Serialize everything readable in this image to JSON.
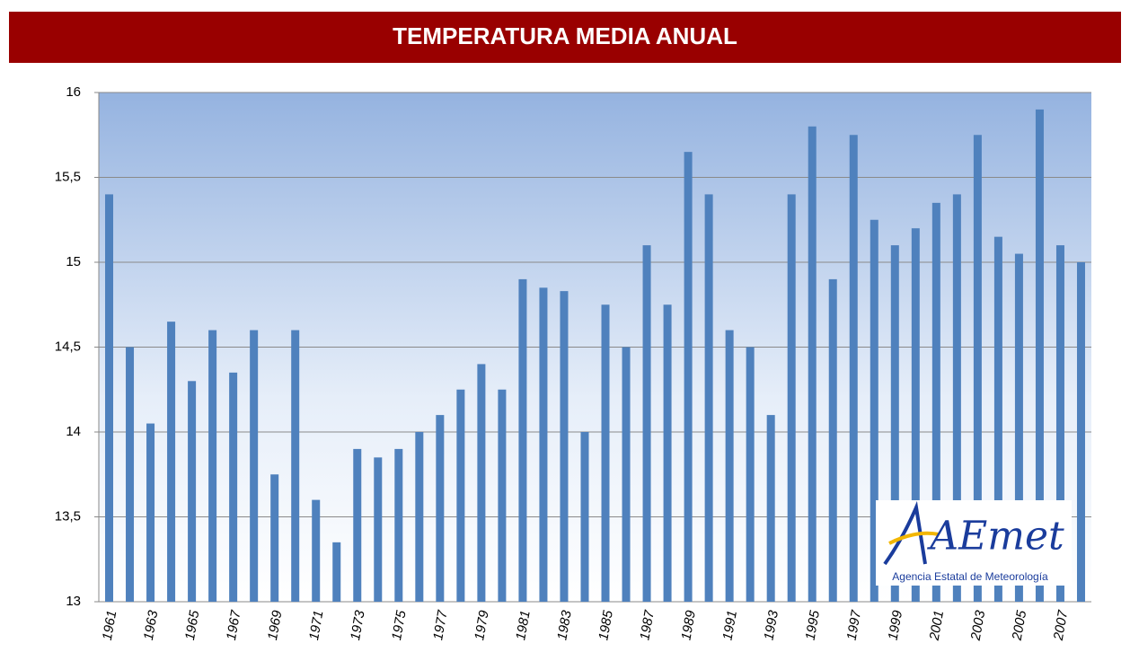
{
  "chart_data": {
    "type": "bar",
    "title": "TEMPERATURA MEDIA ANUAL",
    "categories": [
      "1961",
      null,
      "1963",
      null,
      "1965",
      null,
      "1967",
      null,
      "1969",
      null,
      "1971",
      null,
      "1973",
      null,
      "1975",
      null,
      "1977",
      null,
      "1979",
      null,
      "1981",
      null,
      "1983",
      null,
      "1985",
      null,
      "1987",
      null,
      "1989",
      null,
      "1991",
      null,
      "1993",
      null,
      "1995",
      null,
      "1997",
      null,
      "1999",
      null,
      "2001",
      null,
      "2003",
      null,
      "2005",
      null,
      "2007",
      null
    ],
    "values": [
      15.4,
      14.5,
      14.05,
      14.65,
      14.3,
      14.6,
      14.35,
      14.6,
      13.75,
      14.6,
      13.6,
      13.35,
      13.9,
      13.85,
      13.9,
      14.0,
      14.1,
      14.25,
      14.4,
      14.25,
      14.9,
      14.85,
      14.83,
      14.0,
      14.75,
      14.5,
      15.1,
      14.75,
      15.65,
      15.4,
      14.6,
      14.5,
      14.1,
      15.4,
      15.8,
      14.9,
      15.75,
      15.25,
      15.1,
      15.2,
      15.35,
      15.4,
      15.75,
      15.15,
      15.05,
      15.9,
      15.1,
      15.0
    ],
    "color": "#4f81bd",
    "ylim": [
      13,
      16
    ],
    "yticks": [
      13,
      {
        "value": 13.5,
        "label": "13,5"
      },
      14,
      {
        "value": 14.5,
        "label": "14,5"
      },
      15,
      {
        "value": 15.5,
        "label": "15,5"
      },
      16
    ],
    "grid": true,
    "logo": {
      "mark": "AEmet",
      "caption": "Agencia Estatal de Meteorología"
    }
  }
}
